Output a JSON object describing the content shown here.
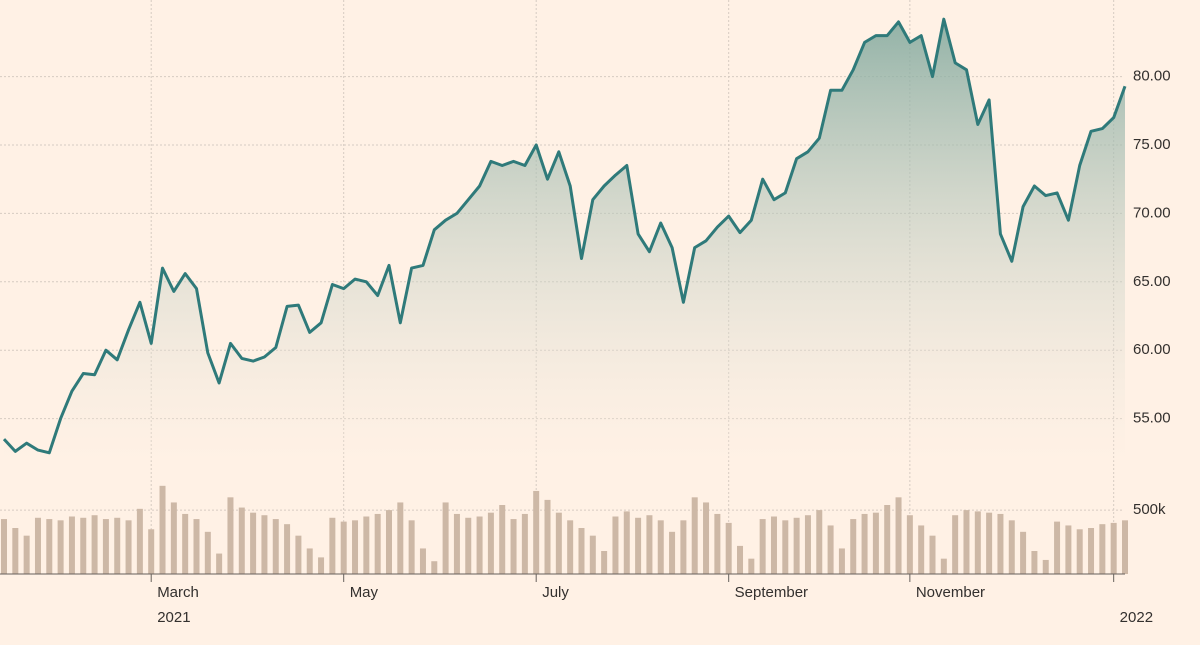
{
  "chart_data": {
    "type": "line",
    "categories": [
      null,
      null,
      null,
      null,
      null,
      null,
      null,
      null,
      null,
      null,
      null,
      null,
      null,
      "March",
      null,
      null,
      null,
      null,
      null,
      null,
      null,
      null,
      null,
      null,
      null,
      null,
      null,
      null,
      null,
      null,
      "May",
      null,
      null,
      null,
      null,
      null,
      null,
      null,
      null,
      null,
      null,
      null,
      null,
      null,
      null,
      null,
      null,
      "July",
      null,
      null,
      null,
      null,
      null,
      null,
      null,
      null,
      null,
      null,
      null,
      null,
      null,
      null,
      null,
      null,
      "September",
      null,
      null,
      null,
      null,
      null,
      null,
      null,
      null,
      null,
      null,
      null,
      null,
      null,
      null,
      null,
      "November",
      null,
      null,
      null,
      null,
      null,
      null,
      null,
      null,
      null,
      null,
      null,
      null,
      null,
      null,
      null,
      null,
      null,
      "2022",
      null
    ],
    "year": "2021",
    "values": [
      53.5,
      52.6,
      53.2,
      52.7,
      52.5,
      55.0,
      57.0,
      58.3,
      58.2,
      60.0,
      59.3,
      61.5,
      63.5,
      60.5,
      66.0,
      64.3,
      65.6,
      64.5,
      59.8,
      57.6,
      60.5,
      59.4,
      59.2,
      59.5,
      60.2,
      63.2,
      63.3,
      61.3,
      62.0,
      64.8,
      64.5,
      65.2,
      65.0,
      64.0,
      66.2,
      62.0,
      66.0,
      66.2,
      68.8,
      69.5,
      70.0,
      71.0,
      72.0,
      73.8,
      73.5,
      73.8,
      73.5,
      75.0,
      72.5,
      74.5,
      72.0,
      66.7,
      71.0,
      72.0,
      72.8,
      73.5,
      68.5,
      67.2,
      69.3,
      67.5,
      63.5,
      67.5,
      68.0,
      69.0,
      69.8,
      68.6,
      69.5,
      72.5,
      71.0,
      71.5,
      74.0,
      74.5,
      75.5,
      79.0,
      79.0,
      80.5,
      82.5,
      83.0,
      83.0,
      84.0,
      82.5,
      83.0,
      80.0,
      84.2,
      81.0,
      80.5,
      76.5,
      78.3,
      68.5,
      66.5,
      70.5,
      72.0,
      71.3,
      71.5,
      69.5,
      73.5,
      76.0,
      76.2,
      77.0,
      79.3
    ],
    "color": "#2f7a7a",
    "ylim": [
      51.9,
      85.6
    ],
    "yticks": [
      {
        "value": 55,
        "label": "55.00"
      },
      {
        "value": 60,
        "label": "60.00"
      },
      {
        "value": 65,
        "label": "65.00"
      },
      {
        "value": 70,
        "label": "70.00"
      },
      {
        "value": 75,
        "label": "75.00"
      },
      {
        "value": 80,
        "label": "80.00"
      }
    ],
    "grid": true,
    "volume": {
      "values": [
        430000,
        360000,
        300000,
        440000,
        430000,
        420000,
        450000,
        440000,
        460000,
        430000,
        440000,
        420000,
        510000,
        350000,
        690000,
        560000,
        470000,
        430000,
        330000,
        160000,
        600000,
        520000,
        480000,
        460000,
        430000,
        390000,
        300000,
        200000,
        130000,
        440000,
        410000,
        420000,
        450000,
        470000,
        500000,
        560000,
        420000,
        200000,
        100000,
        560000,
        470000,
        440000,
        450000,
        480000,
        540000,
        430000,
        470000,
        650000,
        580000,
        480000,
        420000,
        360000,
        300000,
        180000,
        450000,
        490000,
        440000,
        460000,
        420000,
        330000,
        420000,
        600000,
        560000,
        470000,
        400000,
        220000,
        120000,
        430000,
        450000,
        420000,
        440000,
        460000,
        500000,
        380000,
        200000,
        430000,
        470000,
        480000,
        540000,
        600000,
        460000,
        380000,
        300000,
        120000,
        460000,
        500000,
        490000,
        480000,
        470000,
        420000,
        330000,
        180000,
        110000,
        410000,
        380000,
        350000,
        360000,
        390000,
        400000,
        420000
      ],
      "color": "#cdb8a6",
      "ylim": [
        0,
        900000
      ],
      "yticks": [
        {
          "value": 500000,
          "label": "500k"
        }
      ]
    }
  }
}
